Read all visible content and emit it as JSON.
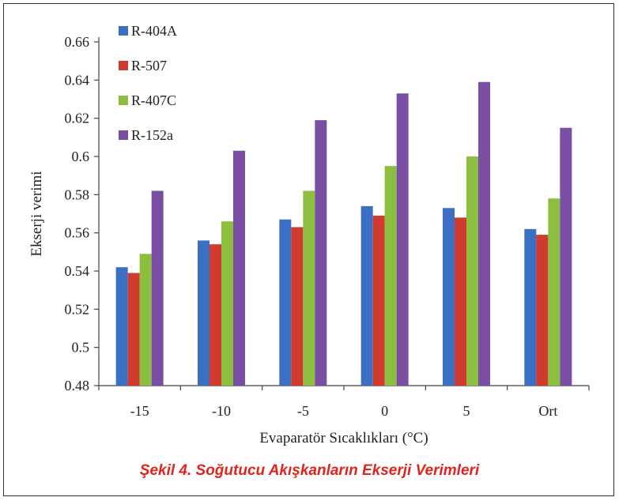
{
  "chart_data": {
    "type": "bar",
    "title": "",
    "xlabel": "Evaparatör Sıcaklıkları (°C)",
    "ylabel": "Ekserji verimi",
    "ylim": [
      0.48,
      0.66
    ],
    "yticks": [
      "0.48",
      "0.5",
      "0.52",
      "0.54",
      "0.56",
      "0.58",
      "0.6",
      "0.62",
      "0.64",
      "0.66"
    ],
    "ytick_values": [
      0.48,
      0.5,
      0.52,
      0.54,
      0.56,
      0.58,
      0.6,
      0.62,
      0.64,
      0.66
    ],
    "categories": [
      "-15",
      "-10",
      "-5",
      "0",
      "5",
      "Ort"
    ],
    "grid": false,
    "legend_position": "top-left",
    "series": [
      {
        "name": "R-404A",
        "color": "#3a6fc4",
        "values": [
          0.542,
          0.556,
          0.567,
          0.574,
          0.573,
          0.562
        ]
      },
      {
        "name": "R-507",
        "color": "#d13b2f",
        "values": [
          0.539,
          0.554,
          0.563,
          0.569,
          0.568,
          0.559
        ]
      },
      {
        "name": "R-407C",
        "color": "#8cbf3f",
        "values": [
          0.549,
          0.566,
          0.582,
          0.595,
          0.6,
          0.578
        ]
      },
      {
        "name": "R-152a",
        "color": "#7a4fa3",
        "values": [
          0.582,
          0.603,
          0.619,
          0.633,
          0.639,
          0.615
        ]
      }
    ]
  },
  "caption": "Şekil 4. Soğutucu Akışkanların Ekserji Verimleri"
}
